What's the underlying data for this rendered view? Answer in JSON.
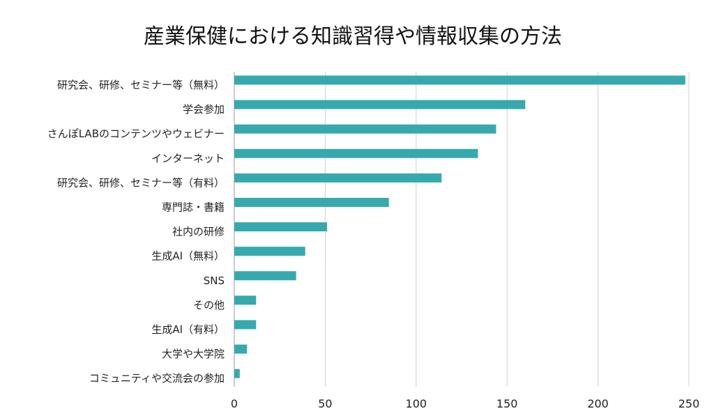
{
  "chart_data": {
    "type": "bar",
    "orientation": "horizontal",
    "title": "産業保健における知識習得や情報収集の方法",
    "xlabel": "",
    "ylabel": "",
    "xlim": [
      0,
      250
    ],
    "ticks": [
      0,
      50,
      100,
      150,
      200,
      250
    ],
    "tick_labels": [
      "0",
      "50",
      "100",
      "150",
      "200",
      "250"
    ],
    "grid": true,
    "bar_color": "#36a9ae",
    "categories": [
      "研究会、研修、セミナー等（無料）",
      "学会参加",
      "さんぽLABのコンテンツやウェビナー",
      "インターネット",
      "研究会、研修、セミナー等（有料）",
      "専門誌・書籍",
      "社内の研修",
      "生成AI（無料）",
      "SNS",
      "その他",
      "生成AI（有料）",
      "大学や大学院",
      "コミュニティや交流会の参加"
    ],
    "values": [
      248,
      160,
      144,
      134,
      114,
      85,
      51,
      39,
      34,
      12,
      12,
      7,
      3
    ]
  }
}
